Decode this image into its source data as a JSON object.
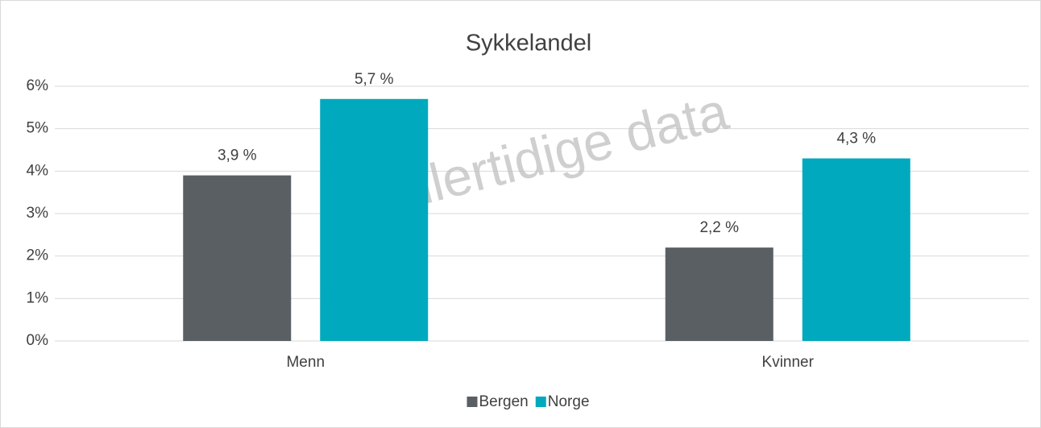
{
  "chart_data": {
    "type": "bar",
    "title": "Sykkelandel",
    "categories": [
      "Menn",
      "Kvinner"
    ],
    "series": [
      {
        "name": "Bergen",
        "color": "#5a5f63",
        "values": [
          3.9,
          2.2
        ],
        "value_labels": [
          "3,9 %",
          "2,2 %"
        ]
      },
      {
        "name": "Norge",
        "color": "#00a9bd",
        "values": [
          5.7,
          4.3
        ],
        "value_labels": [
          "5,7 %",
          "4,3 %"
        ]
      }
    ],
    "ylim": [
      0,
      6
    ],
    "yticks": [
      {
        "value": 0,
        "label": "0%"
      },
      {
        "value": 1,
        "label": "1%"
      },
      {
        "value": 2,
        "label": "2%"
      },
      {
        "value": 3,
        "label": "3%"
      },
      {
        "value": 4,
        "label": "4%"
      },
      {
        "value": 5,
        "label": "5%"
      },
      {
        "value": 6,
        "label": "6%"
      }
    ],
    "grid": true,
    "legend": "bottom",
    "annotations": [
      "Midlertidige data"
    ]
  }
}
